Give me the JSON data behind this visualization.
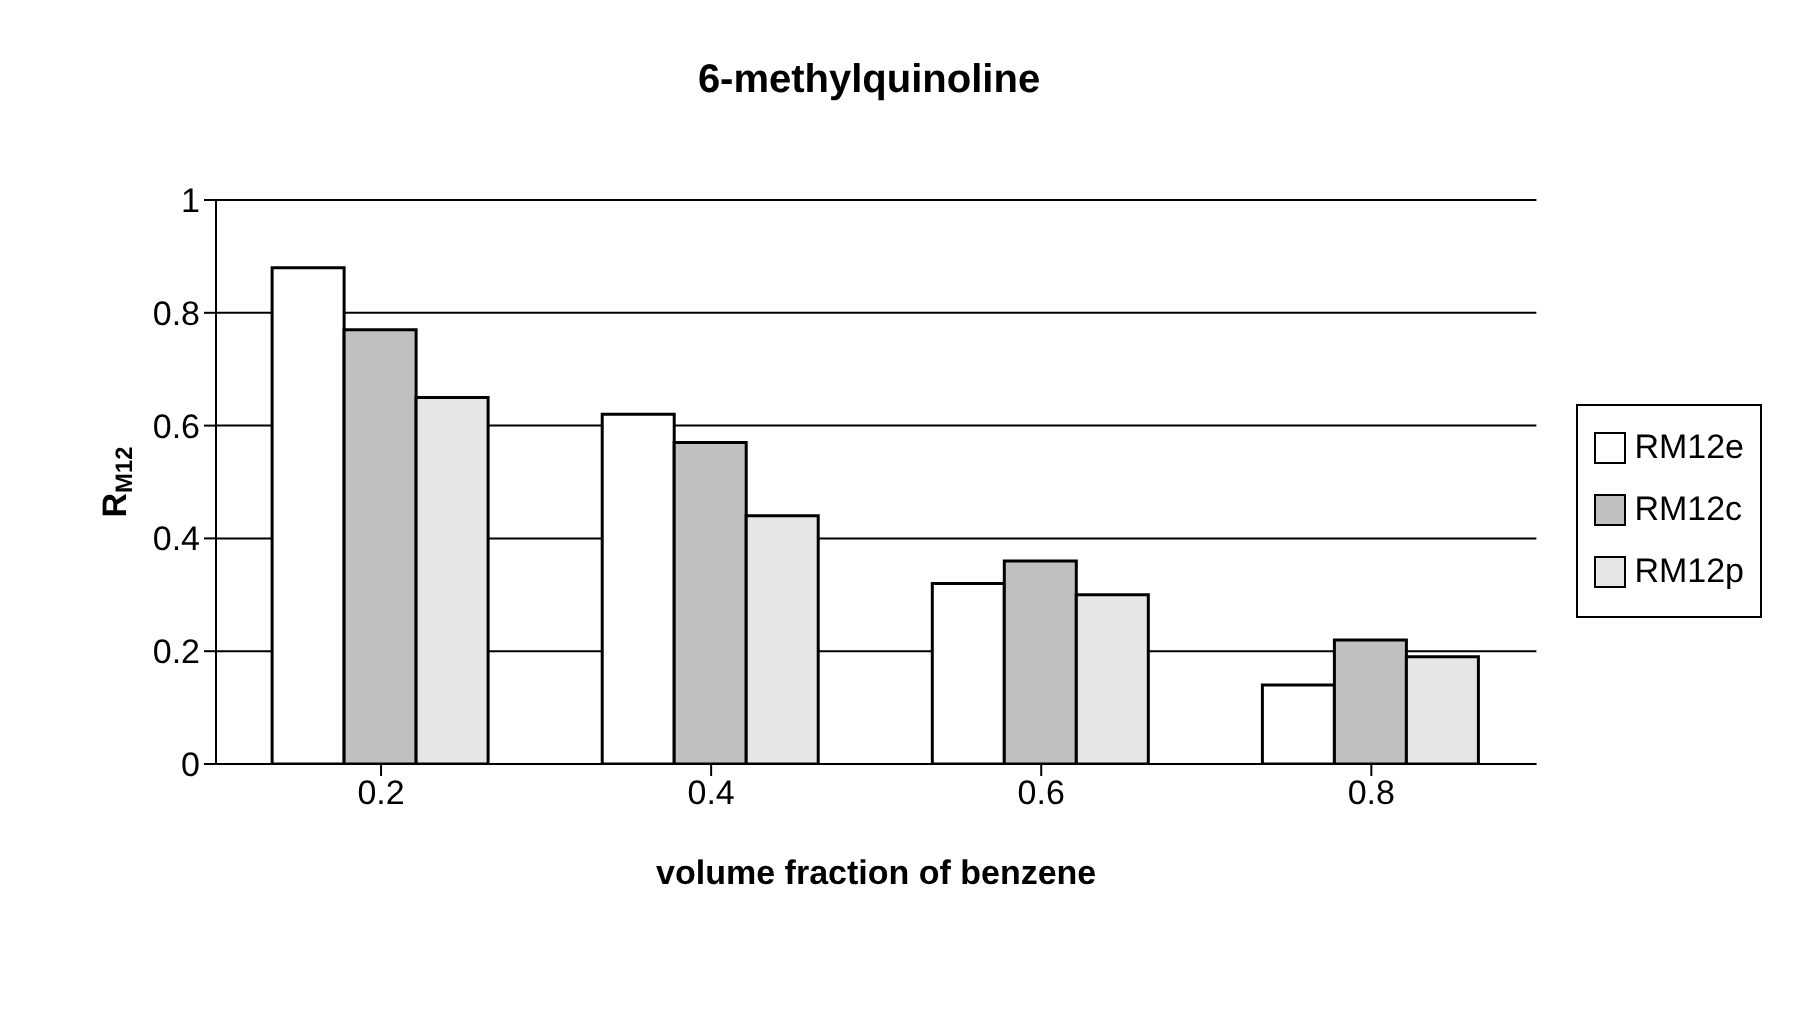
{
  "chart_data": {
    "type": "bar",
    "title": "6-methylquinoline",
    "xlabel": "volume fraction of benzene",
    "ylabel": "R$_{M12}$",
    "categories": [
      "0.2",
      "0.4",
      "0.6",
      "0.8"
    ],
    "series": [
      {
        "name": "RM12e",
        "color": "#ffffff",
        "values": [
          0.88,
          0.62,
          0.32,
          0.14
        ]
      },
      {
        "name": "RM12c",
        "color": "#c0c0c0",
        "values": [
          0.77,
          0.57,
          0.36,
          0.22
        ]
      },
      {
        "name": "RM12p",
        "color": "#e6e6e6",
        "values": [
          0.65,
          0.44,
          0.3,
          0.19
        ]
      }
    ],
    "ylim": [
      0,
      1
    ],
    "yticks": [
      0,
      0.2,
      0.4,
      0.6,
      0.8,
      1
    ],
    "grid": "y",
    "legend": "right"
  }
}
